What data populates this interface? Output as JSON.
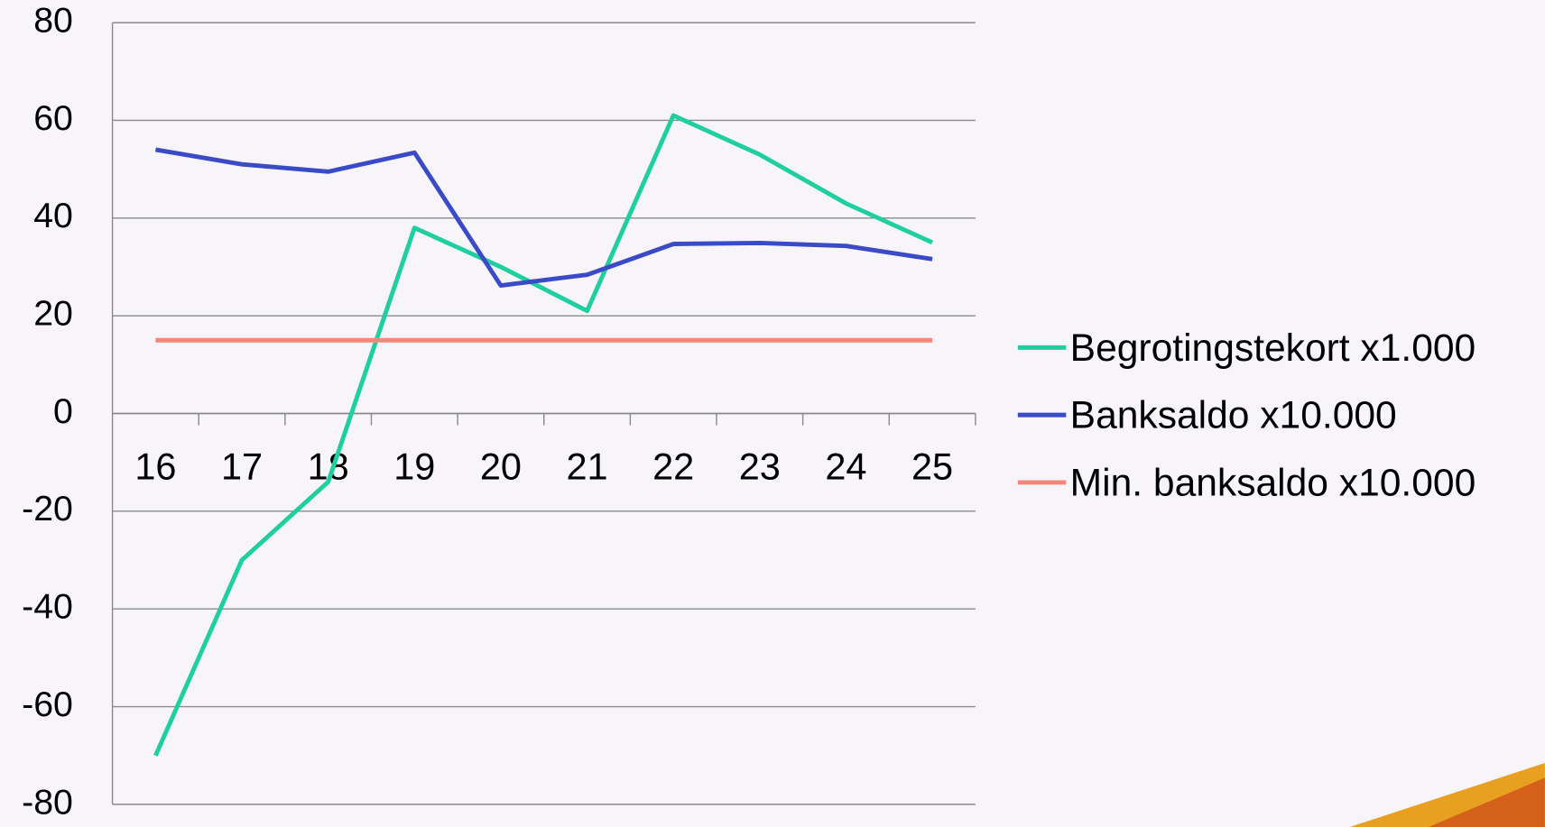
{
  "chart_data": {
    "type": "line",
    "categories": [
      "16",
      "17",
      "18",
      "19",
      "20",
      "21",
      "22",
      "23",
      "24",
      "25"
    ],
    "series": [
      {
        "name": "Begrotingstekort x1.000",
        "color": "#1fcfa0",
        "values": [
          -70,
          -30,
          -14,
          38,
          30,
          21,
          61,
          53,
          43,
          35
        ]
      },
      {
        "name": "Banksaldo x10.000",
        "color": "#3b4bc8",
        "values": [
          54,
          51,
          49.5,
          53.4,
          26.2,
          28.4,
          34.7,
          34.9,
          34.3,
          31.6
        ]
      },
      {
        "name": "Min. banksaldo x10.000",
        "color": "#f4877a",
        "values": [
          15,
          15,
          15,
          15,
          15,
          15,
          15,
          15,
          15,
          15
        ]
      }
    ],
    "ylim": [
      -80,
      80
    ],
    "yticks": [
      -80,
      -60,
      -40,
      -20,
      0,
      20,
      40,
      60,
      80
    ],
    "grid": true,
    "legend": "right"
  }
}
